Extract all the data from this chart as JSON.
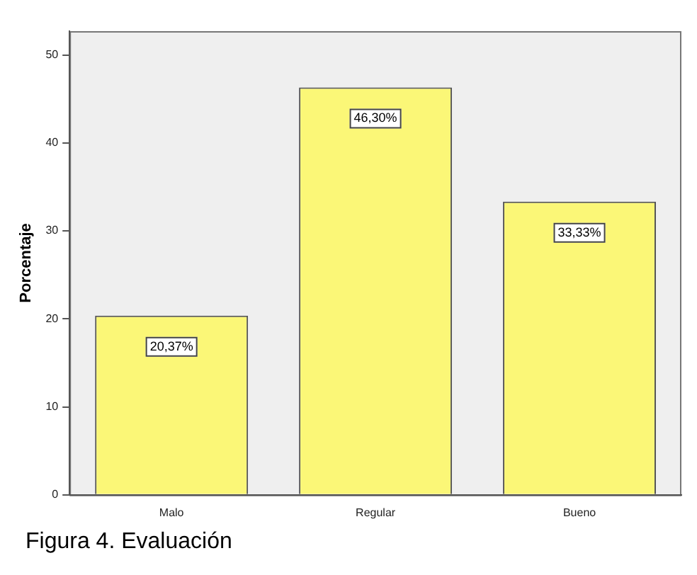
{
  "chart_data": {
    "type": "bar",
    "ylabel": "Porcentaje",
    "categories": [
      "Malo",
      "Regular",
      "Bueno"
    ],
    "values": [
      20.37,
      46.3,
      33.33
    ],
    "value_labels": [
      "20,37%",
      "46,30%",
      "33,33%"
    ],
    "color": "#fbf777",
    "ylim": [
      0,
      52.7
    ],
    "yticks": [
      0,
      10,
      20,
      30,
      40,
      50
    ],
    "annotations": [
      "Figura 4. Evaluación"
    ]
  }
}
